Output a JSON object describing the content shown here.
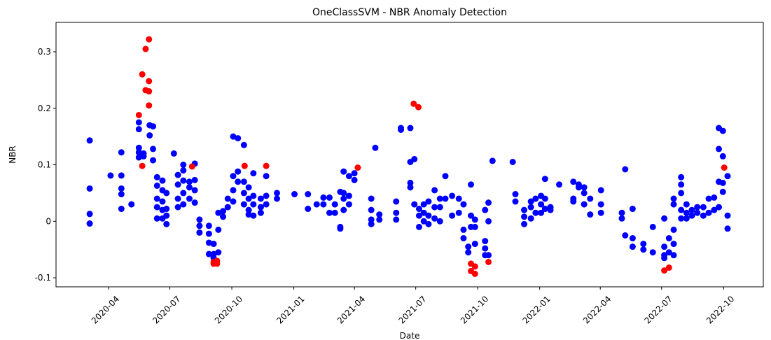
{
  "chart_data": {
    "type": "scatter",
    "title": "OneClassSVM - NBR Anomaly Detection",
    "xlabel": "Date",
    "ylabel": "NBR",
    "xlim": [
      "2020-01-14",
      "2022-11-29"
    ],
    "ylim": [
      -0.116,
      0.352
    ],
    "xticks": [
      {
        "value": "2020-04-01",
        "label": "2020-04"
      },
      {
        "value": "2020-07-01",
        "label": "2020-07"
      },
      {
        "value": "2020-10-01",
        "label": "2020-10"
      },
      {
        "value": "2021-01-01",
        "label": "2021-01"
      },
      {
        "value": "2021-04-01",
        "label": "2021-04"
      },
      {
        "value": "2021-07-01",
        "label": "2021-07"
      },
      {
        "value": "2021-10-01",
        "label": "2021-10"
      },
      {
        "value": "2022-01-01",
        "label": "2022-01"
      },
      {
        "value": "2022-04-01",
        "label": "2022-04"
      },
      {
        "value": "2022-07-01",
        "label": "2022-07"
      },
      {
        "value": "2022-10-01",
        "label": "2022-10"
      }
    ],
    "yticks": [
      -0.1,
      0.0,
      0.1,
      0.2,
      0.3
    ],
    "grid": false,
    "series": [
      {
        "color": "#0000ff",
        "x": [
          "2020-03-04",
          "2020-03-04",
          "2020-03-04",
          "2020-03-04",
          "2020-04-04",
          "2020-04-20",
          "2020-04-20",
          "2020-04-20",
          "2020-04-20",
          "2020-04-20",
          "2020-05-05",
          "2020-05-16",
          "2020-05-16",
          "2020-05-16",
          "2020-05-16",
          "2020-05-16",
          "2020-05-23",
          "2020-05-23",
          "2020-06-01",
          "2020-06-01",
          "2020-06-06",
          "2020-06-06",
          "2020-06-06",
          "2020-06-12",
          "2020-06-12",
          "2020-06-12",
          "2020-06-12",
          "2020-06-12",
          "2020-06-20",
          "2020-06-20",
          "2020-06-20",
          "2020-06-20",
          "2020-06-20",
          "2020-06-26",
          "2020-06-26",
          "2020-06-26",
          "2020-06-26",
          "2020-07-07",
          "2020-07-13",
          "2020-07-13",
          "2020-07-13",
          "2020-07-13",
          "2020-07-21",
          "2020-07-21",
          "2020-07-21",
          "2020-07-21",
          "2020-07-21",
          "2020-07-30",
          "2020-07-30",
          "2020-07-30",
          "2020-08-07",
          "2020-08-07",
          "2020-08-07",
          "2020-08-07",
          "2020-08-14",
          "2020-08-14",
          "2020-08-14",
          "2020-08-28",
          "2020-08-28",
          "2020-08-28",
          "2020-08-28",
          "2020-09-04",
          "2020-09-04",
          "2020-09-04",
          "2020-09-11",
          "2020-09-11",
          "2020-09-11",
          "2020-09-18",
          "2020-09-18",
          "2020-09-25",
          "2020-09-25",
          "2020-10-03",
          "2020-10-03",
          "2020-10-03",
          "2020-10-03",
          "2020-10-10",
          "2020-10-10",
          "2020-10-10",
          "2020-10-19",
          "2020-10-19",
          "2020-10-19",
          "2020-10-19",
          "2020-10-26",
          "2020-10-26",
          "2020-10-26",
          "2020-10-26",
          "2020-11-02",
          "2020-11-02",
          "2020-11-02",
          "2020-11-02",
          "2020-11-13",
          "2020-11-13",
          "2020-11-13",
          "2020-11-21",
          "2020-11-21",
          "2020-11-21",
          "2020-12-07",
          "2020-12-07",
          "2021-01-02",
          "2021-01-22",
          "2021-01-22",
          "2021-02-04",
          "2021-02-14",
          "2021-02-14",
          "2021-02-23",
          "2021-02-23",
          "2021-03-03",
          "2021-03-03",
          "2021-03-11",
          "2021-03-11",
          "2021-03-11",
          "2021-03-16",
          "2021-03-16",
          "2021-03-16",
          "2021-03-16",
          "2021-03-24",
          "2021-03-24",
          "2021-03-24",
          "2021-04-01",
          "2021-04-01",
          "2021-04-26",
          "2021-04-26",
          "2021-04-26",
          "2021-04-26",
          "2021-05-02",
          "2021-05-08",
          "2021-05-08",
          "2021-06-02",
          "2021-06-02",
          "2021-06-02",
          "2021-06-09",
          "2021-06-09",
          "2021-06-23",
          "2021-06-23",
          "2021-06-23",
          "2021-06-23",
          "2021-06-29",
          "2021-06-29",
          "2021-07-06",
          "2021-07-06",
          "2021-07-06",
          "2021-07-13",
          "2021-07-13",
          "2021-07-13",
          "2021-07-20",
          "2021-07-20",
          "2021-07-20",
          "2021-07-29",
          "2021-07-29",
          "2021-07-29",
          "2021-08-06",
          "2021-08-06",
          "2021-08-06",
          "2021-08-14",
          "2021-08-14",
          "2021-08-24",
          "2021-08-24",
          "2021-09-03",
          "2021-09-03",
          "2021-09-10",
          "2021-09-10",
          "2021-09-10",
          "2021-09-17",
          "2021-09-17",
          "2021-09-21",
          "2021-09-21",
          "2021-09-21",
          "2021-09-27",
          "2021-09-27",
          "2021-09-27",
          "2021-10-12",
          "2021-10-12",
          "2021-10-12",
          "2021-10-12",
          "2021-10-17",
          "2021-10-17",
          "2021-10-17",
          "2021-10-23",
          "2021-11-22",
          "2021-11-26",
          "2021-11-26",
          "2021-12-09",
          "2021-12-09",
          "2021-12-09",
          "2021-12-19",
          "2021-12-19",
          "2021-12-19",
          "2021-12-26",
          "2021-12-26",
          "2022-01-03",
          "2022-01-03",
          "2022-01-03",
          "2022-01-09",
          "2022-01-09",
          "2022-01-09",
          "2022-01-17",
          "2022-01-17",
          "2022-01-30",
          "2022-02-20",
          "2022-02-20",
          "2022-02-20",
          "2022-02-28",
          "2022-02-28",
          "2022-03-08",
          "2022-03-08",
          "2022-03-08",
          "2022-03-17",
          "2022-03-17",
          "2022-04-02",
          "2022-04-02",
          "2022-04-02",
          "2022-05-03",
          "2022-05-03",
          "2022-05-08",
          "2022-05-08",
          "2022-05-19",
          "2022-05-19",
          "2022-05-19",
          "2022-06-04",
          "2022-06-04",
          "2022-06-18",
          "2022-06-18",
          "2022-07-05",
          "2022-07-05",
          "2022-07-05",
          "2022-07-05",
          "2022-07-12",
          "2022-07-12",
          "2022-07-19",
          "2022-07-19",
          "2022-07-19",
          "2022-07-19",
          "2022-07-19",
          "2022-07-30",
          "2022-07-30",
          "2022-07-30",
          "2022-07-30",
          "2022-07-30",
          "2022-08-07",
          "2022-08-07",
          "2022-08-07",
          "2022-08-15",
          "2022-08-15",
          "2022-08-23",
          "2022-08-23",
          "2022-09-01",
          "2022-09-01",
          "2022-09-09",
          "2022-09-09",
          "2022-09-17",
          "2022-09-17",
          "2022-09-24",
          "2022-09-24",
          "2022-09-24",
          "2022-09-24",
          "2022-09-30",
          "2022-09-30",
          "2022-09-30",
          "2022-09-30",
          "2022-10-07",
          "2022-10-07",
          "2022-10-07"
        ],
        "values": [
          0.143,
          0.058,
          0.013,
          -0.004,
          0.081,
          0.122,
          0.081,
          0.058,
          0.048,
          0.022,
          0.03,
          0.175,
          0.163,
          0.13,
          0.122,
          0.113,
          0.12,
          0.115,
          0.17,
          0.152,
          0.168,
          0.128,
          0.108,
          0.078,
          0.063,
          0.04,
          0.025,
          0.005,
          0.072,
          0.055,
          0.035,
          0.02,
          0.005,
          0.05,
          0.022,
          0.01,
          -0.005,
          0.12,
          0.082,
          0.065,
          0.04,
          0.025,
          0.1,
          0.09,
          0.072,
          0.05,
          0.03,
          0.07,
          0.06,
          0.04,
          0.102,
          0.073,
          0.055,
          0.033,
          0.003,
          -0.008,
          -0.02,
          -0.008,
          -0.022,
          -0.038,
          -0.058,
          -0.04,
          -0.058,
          -0.065,
          0.015,
          -0.015,
          -0.055,
          0.018,
          0.008,
          0.04,
          0.025,
          0.15,
          0.08,
          0.055,
          0.035,
          0.147,
          0.088,
          0.07,
          0.135,
          0.07,
          0.05,
          0.03,
          0.06,
          0.04,
          0.02,
          0.012,
          0.085,
          0.045,
          0.03,
          0.01,
          0.04,
          0.025,
          0.015,
          0.08,
          0.045,
          0.03,
          0.05,
          0.04,
          0.048,
          0.048,
          0.022,
          0.03,
          0.042,
          0.03,
          0.042,
          0.015,
          0.03,
          0.015,
          0.052,
          -0.01,
          -0.013,
          0.088,
          0.05,
          0.04,
          0.02,
          0.08,
          0.045,
          0.03,
          0.085,
          0.073,
          0.04,
          0.02,
          0.003,
          -0.005,
          0.13,
          0.012,
          0.003,
          0.035,
          0.015,
          0.003,
          0.165,
          0.162,
          0.165,
          0.105,
          0.068,
          0.06,
          0.11,
          0.03,
          0.022,
          0.01,
          -0.01,
          0.03,
          0.015,
          0.0,
          0.035,
          0.01,
          -0.005,
          0.055,
          0.025,
          0.005,
          0.04,
          0.025,
          0.0,
          0.08,
          0.04,
          0.045,
          0.01,
          0.04,
          0.015,
          0.03,
          -0.015,
          -0.03,
          -0.045,
          -0.055,
          0.065,
          0.01,
          -0.01,
          0.003,
          -0.01,
          -0.04,
          0.02,
          -0.035,
          -0.048,
          -0.06,
          0.033,
          0.0,
          -0.06,
          0.107,
          0.105,
          0.048,
          0.035,
          0.02,
          0.008,
          -0.005,
          0.035,
          0.025,
          0.005,
          0.04,
          0.015,
          0.045,
          0.03,
          0.015,
          0.075,
          0.04,
          0.022,
          0.025,
          0.02,
          0.065,
          0.07,
          0.04,
          0.035,
          0.065,
          0.06,
          0.06,
          0.05,
          0.03,
          0.04,
          0.012,
          0.055,
          0.03,
          0.015,
          0.015,
          0.005,
          0.092,
          -0.025,
          0.022,
          -0.03,
          -0.045,
          -0.04,
          -0.05,
          -0.01,
          -0.055,
          0.005,
          -0.045,
          -0.06,
          -0.065,
          -0.03,
          -0.055,
          0.04,
          0.03,
          -0.015,
          -0.04,
          -0.06,
          0.078,
          0.065,
          0.05,
          0.02,
          0.005,
          0.03,
          0.015,
          0.005,
          0.02,
          0.01,
          0.025,
          0.015,
          0.025,
          0.01,
          0.04,
          0.015,
          0.042,
          0.02,
          0.165,
          0.128,
          0.07,
          0.025,
          0.16,
          0.115,
          0.068,
          0.052,
          0.08,
          0.01,
          -0.013
        ]
      },
      {
        "color": "#ff0000",
        "x": [
          "2020-05-16",
          "2020-05-21",
          "2020-05-21",
          "2020-05-26",
          "2020-05-26",
          "2020-05-31",
          "2020-05-31",
          "2020-05-31",
          "2020-05-31",
          "2020-08-03",
          "2020-09-04",
          "2020-09-04",
          "2020-09-09",
          "2020-09-09",
          "2020-10-20",
          "2020-11-21",
          "2021-04-06",
          "2021-06-28",
          "2021-07-05",
          "2021-09-21",
          "2021-09-21",
          "2021-09-27",
          "2021-09-27",
          "2021-10-17",
          "2022-07-05",
          "2022-07-12",
          "2022-10-02"
        ],
        "values": [
          0.188,
          0.26,
          0.098,
          0.305,
          0.232,
          0.322,
          0.248,
          0.23,
          0.205,
          0.097,
          -0.072,
          -0.075,
          -0.07,
          -0.075,
          0.098,
          0.098,
          0.095,
          0.208,
          0.202,
          -0.075,
          -0.088,
          -0.08,
          -0.093,
          -0.072,
          -0.087,
          -0.082,
          0.095
        ]
      }
    ]
  }
}
